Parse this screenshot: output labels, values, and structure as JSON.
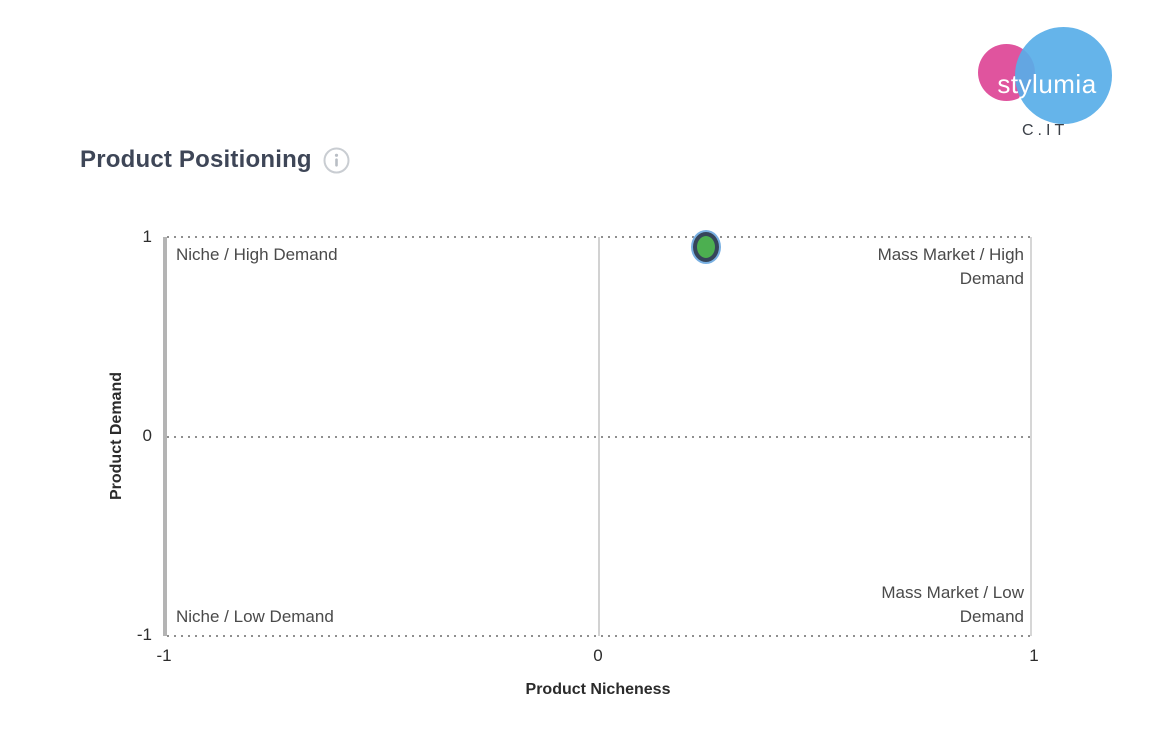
{
  "logo": {
    "brand": "stylumia",
    "suffix": "C.IT",
    "pink_color": "#e0549e",
    "blue_color": "#58aee8"
  },
  "header": {
    "title": "Product Positioning"
  },
  "chart_data": {
    "type": "scatter",
    "title": "Product Positioning",
    "xlabel": "Product Nicheness",
    "ylabel": "Product Demand",
    "xlim": [
      -1,
      1
    ],
    "ylim": [
      -1,
      1
    ],
    "x_tick_labels": [
      "-1",
      "0",
      "1"
    ],
    "y_tick_labels": [
      "1",
      "0",
      "-1"
    ],
    "grid": "dotted horizontal lines at y = 1, 0, -1; light solid vertical lines at x = -1, 0, 1",
    "quadrant_labels": {
      "top_left": "Niche / High Demand",
      "top_right": "Mass Market / High Demand",
      "bottom_left": "Niche / Low Demand",
      "bottom_right": "Mass Market / Low Demand"
    },
    "points": [
      {
        "x": 0.25,
        "y": 0.95,
        "fill": "#4caf50",
        "stroke": "#36455a",
        "halo": "#79b0e2"
      }
    ]
  }
}
